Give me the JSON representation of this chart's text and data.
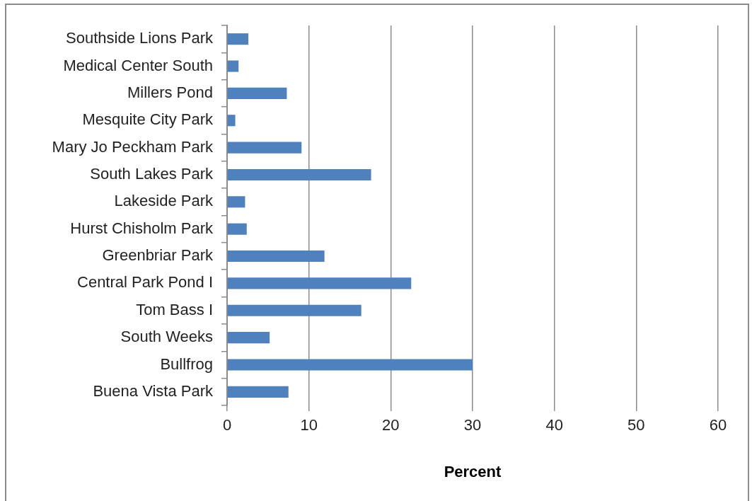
{
  "chart_data": {
    "type": "bar",
    "orientation": "horizontal",
    "xlabel": "Percent",
    "categories": [
      "Southside Lions Park",
      "Medical Center South",
      "Millers Pond",
      "Mesquite City Park",
      "Mary Jo Peckham Park",
      "South Lakes Park",
      "Lakeside Park",
      "Hurst Chisholm Park",
      "Greenbriar Park",
      "Central Park Pond I",
      "Tom Bass I",
      "South Weeks",
      "Bullfrog",
      "Buena Vista Park"
    ],
    "values": [
      2.6,
      1.4,
      7.3,
      1.0,
      9.1,
      17.6,
      2.2,
      2.4,
      11.9,
      22.5,
      16.4,
      5.2,
      30.0,
      7.5
    ],
    "color": "#4f81bd",
    "xlim": [
      0,
      60
    ],
    "xticks": [
      0,
      10,
      20,
      30,
      40,
      50,
      60
    ],
    "grid": "x",
    "legend": false
  }
}
